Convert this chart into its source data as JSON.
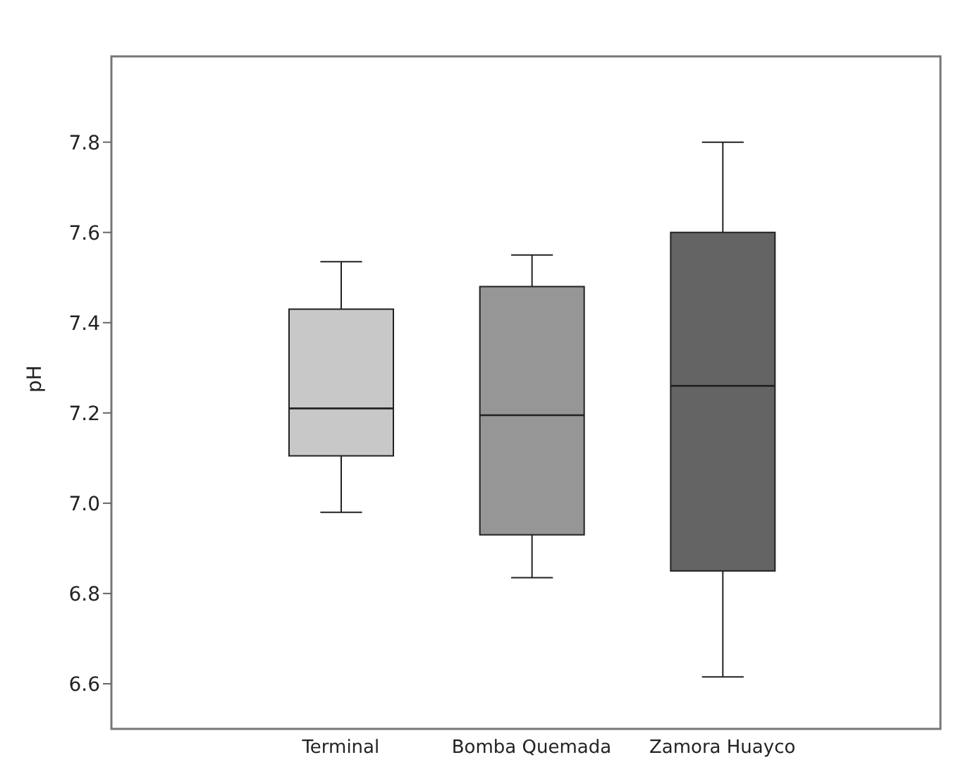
{
  "chart_data": {
    "type": "box",
    "ylabel": "pH",
    "categories": [
      "Terminal",
      "Bomba Quemada",
      "Zamora Huayco"
    ],
    "boxes": [
      {
        "low": 6.98,
        "q1": 7.105,
        "median": 7.21,
        "q3": 7.43,
        "high": 7.535
      },
      {
        "low": 6.835,
        "q1": 6.93,
        "median": 7.195,
        "q3": 7.48,
        "high": 7.55
      },
      {
        "low": 6.615,
        "q1": 6.85,
        "median": 7.26,
        "q3": 7.6,
        "high": 7.8
      }
    ],
    "colors": [
      "#c8c8c8",
      "#969696",
      "#646464"
    ],
    "ylim": [
      6.5,
      7.99
    ],
    "yticks": [
      6.6,
      6.8,
      {
        "value": 7,
        "label": "7.0"
      },
      7.2,
      7.4,
      7.6,
      7.8
    ],
    "grid": false,
    "legend": false
  }
}
